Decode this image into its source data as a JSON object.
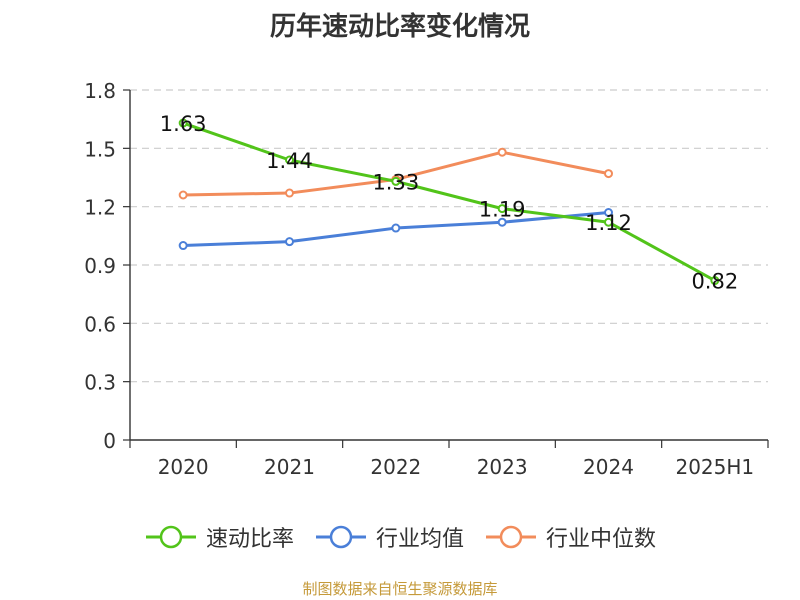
{
  "title": "历年速动比率变化情况",
  "source": "制图数据来自恒生聚源数据库",
  "chart_data": {
    "type": "line",
    "categories": [
      "2020",
      "2021",
      "2022",
      "2023",
      "2024",
      "2025H1"
    ],
    "ylim": [
      0,
      1.8
    ],
    "yticks": [
      "0",
      "0.3",
      "0.6",
      "0.9",
      "1.2",
      "1.5",
      "1.8"
    ],
    "grid": true,
    "legend_position": "bottom",
    "series": [
      {
        "name": "速动比率",
        "color": "#52c41a",
        "values": [
          1.63,
          1.44,
          1.33,
          1.19,
          1.12,
          0.82
        ],
        "labels": true
      },
      {
        "name": "行业均值",
        "color": "#4a7fd8",
        "values": [
          1.0,
          1.02,
          1.09,
          1.12,
          1.17,
          null
        ],
        "labels": false
      },
      {
        "name": "行业中位数",
        "color": "#f28c5b",
        "values": [
          1.26,
          1.27,
          1.34,
          1.48,
          1.37,
          null
        ],
        "labels": false
      }
    ],
    "data_labels": [
      "1.63",
      "1.44",
      "1.33",
      "1.19",
      "1.12",
      "0.82"
    ]
  }
}
